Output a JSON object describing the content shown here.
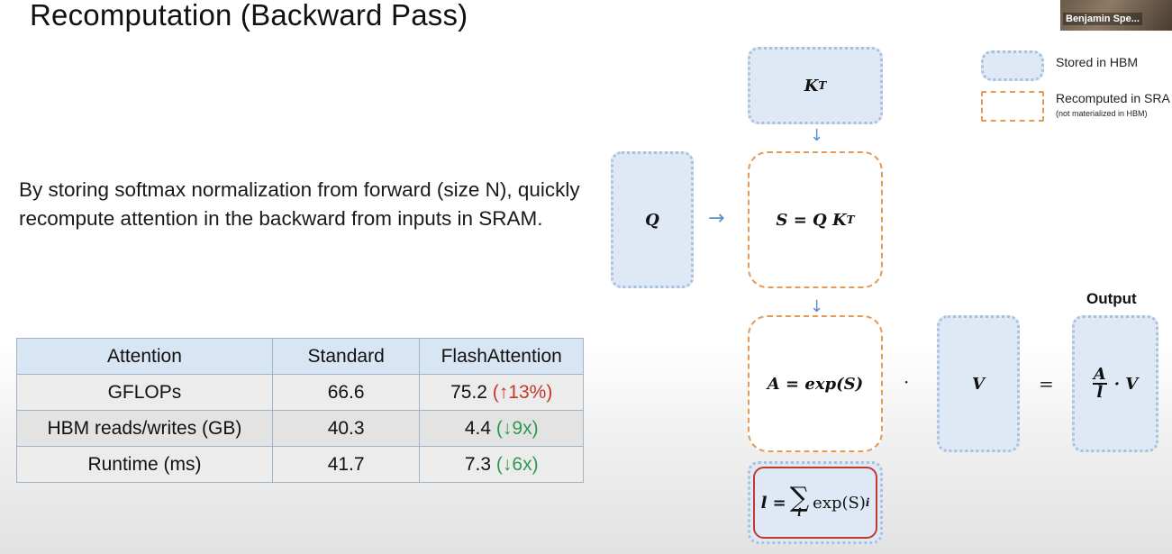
{
  "title": "Recomputation (Backward Pass)",
  "video": {
    "participant_name": "Benjamin Spe..."
  },
  "body_text": "By storing softmax normalization from forward (size N), quickly recompute attention in the backward from inputs in SRAM.",
  "table": {
    "headers": [
      "Attention",
      "Standard",
      "FlashAttention"
    ],
    "rows": [
      {
        "label": "GFLOPs",
        "standard": "66.6",
        "flash_value": "75.2",
        "flash_change": "(↑13%)",
        "change_color": "#c0392b"
      },
      {
        "label": "HBM reads/writes (GB)",
        "standard": "40.3",
        "flash_value": "4.4",
        "flash_change": "(↓9x)",
        "change_color": "#2e9a4d"
      },
      {
        "label": "Runtime (ms)",
        "standard": "41.7",
        "flash_value": "7.3",
        "flash_change": "(↓6x)",
        "change_color": "#2e9a4d"
      }
    ]
  },
  "diagram": {
    "kt_label": "K",
    "kt_sup": "T",
    "q_label": "Q",
    "s_formula_left": "S = Q K",
    "s_formula_sup": "T",
    "a_formula": "A = exp(S)",
    "v_label": "V",
    "dot_op": "·",
    "eq_op": "=",
    "output_label": "Output",
    "output_frac_num": "A",
    "output_frac_den": "l",
    "output_times": "· V",
    "l_formula_left": "l =",
    "l_sum": "∑",
    "l_sum_index": "i",
    "l_formula_right": "exp(S)",
    "l_sub": "i"
  },
  "legend": {
    "stored": "Stored in HBM",
    "recomputed": "Recomputed in SRAM",
    "recomputed_note": "(not materialized in HBM)"
  },
  "colors": {
    "hbm_fill": "#dfe9f5",
    "sram_border": "#e69a55",
    "arrow": "#5b8fd0",
    "l_border": "#c0392b"
  }
}
